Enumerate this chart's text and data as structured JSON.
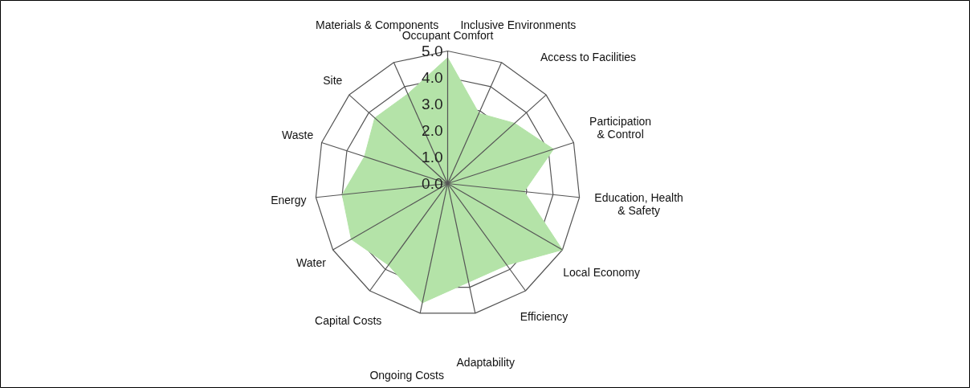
{
  "chart_data": {
    "type": "radar",
    "categories": [
      "Occupant Comfort",
      "Inclusive Environments",
      "Access to Facilities",
      "Participation\n& Control",
      "Education, Health\n& Safety",
      "Local Economy",
      "Efficiency",
      "Adaptability",
      "Ongoing Costs",
      "Capital Costs",
      "Water",
      "Energy",
      "Waste",
      "Site",
      "Materials & Components"
    ],
    "series": [
      {
        "color": "#b4e3a8",
        "values": [
          4.75,
          2.9,
          3.4,
          4.2,
          2.9,
          5.0,
          3.8,
          3.8,
          4.6,
          3.8,
          4.2,
          4.0,
          3.3,
          3.7,
          3.7
        ]
      }
    ],
    "ylim": [
      0,
      5
    ],
    "yticks": [
      {
        "value": 0,
        "label": "0.0"
      },
      {
        "value": 1,
        "label": "1.0"
      },
      {
        "value": 2,
        "label": "2.0"
      },
      {
        "value": 3,
        "label": "3.0"
      },
      {
        "value": 4,
        "label": "4.0"
      },
      {
        "value": 5,
        "label": "5.0"
      }
    ],
    "grid": true
  }
}
